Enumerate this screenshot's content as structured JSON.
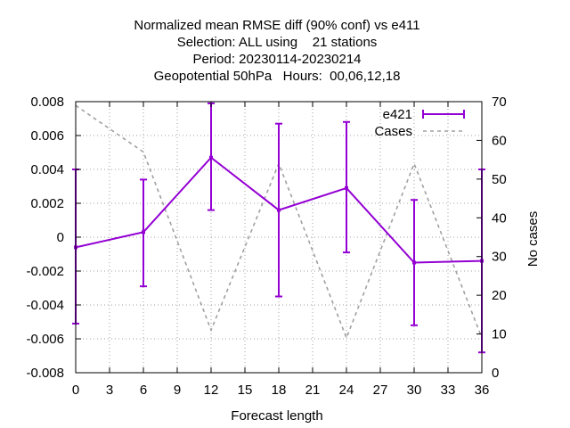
{
  "title_lines": [
    "Normalized mean RMSE diff (90% conf) vs e411",
    "Selection: ALL using    21 stations",
    "Period: 20230114-20230214",
    "Geopotential 50hPa   Hours:  00,06,12,18"
  ],
  "colors": {
    "series": "#9400d3",
    "cases": "#a0a0a0",
    "grid": "#a0a0a0",
    "axis": "#000000"
  },
  "chart_data": {
    "type": "line",
    "xlabel": "Forecast length",
    "ylabel": "",
    "y2label": "No cases",
    "xlim": [
      0,
      36
    ],
    "ylim": [
      -0.008,
      0.008
    ],
    "y2lim": [
      0,
      70
    ],
    "grid": true,
    "legend_position": "top-right",
    "xticks": [
      0,
      3,
      6,
      9,
      12,
      15,
      18,
      21,
      24,
      27,
      30,
      33,
      36
    ],
    "xtick_labels": [
      "0",
      "3",
      "6",
      "9",
      "12",
      "15",
      "18",
      "21",
      "24",
      "27",
      "30",
      "33",
      "36"
    ],
    "yticks": [
      0.008,
      0.006,
      0.004,
      0.002,
      0,
      -0.002,
      -0.004,
      -0.006,
      -0.008
    ],
    "ytick_labels": [
      "0.008",
      "0.006",
      "0.004",
      "0.002",
      "0",
      "-0.002",
      "-0.004",
      "-0.006",
      "-0.008"
    ],
    "y2ticks": [
      70,
      60,
      50,
      40,
      30,
      20,
      10,
      0
    ],
    "y2tick_labels": [
      "70",
      "60",
      "50",
      "40",
      "30",
      "20",
      "10",
      "0"
    ],
    "series": [
      {
        "name": "e421",
        "x": [
          0,
          6,
          12,
          18,
          24,
          30,
          36
        ],
        "y": [
          -0.0006,
          0.0003,
          0.0047,
          0.0016,
          0.0029,
          -0.0015,
          -0.0014
        ],
        "err_low": [
          -0.0051,
          -0.0029,
          0.0016,
          -0.0035,
          -0.0009,
          -0.0052,
          -0.0068
        ],
        "err_high": [
          0.004,
          0.0034,
          0.0079,
          0.0067,
          0.0068,
          0.0022,
          0.004
        ]
      },
      {
        "name": "Cases",
        "axis": "y2",
        "x": [
          0,
          6,
          12,
          18,
          24,
          30,
          36
        ],
        "y": [
          69,
          57,
          11,
          54,
          9,
          54,
          9
        ]
      }
    ]
  }
}
